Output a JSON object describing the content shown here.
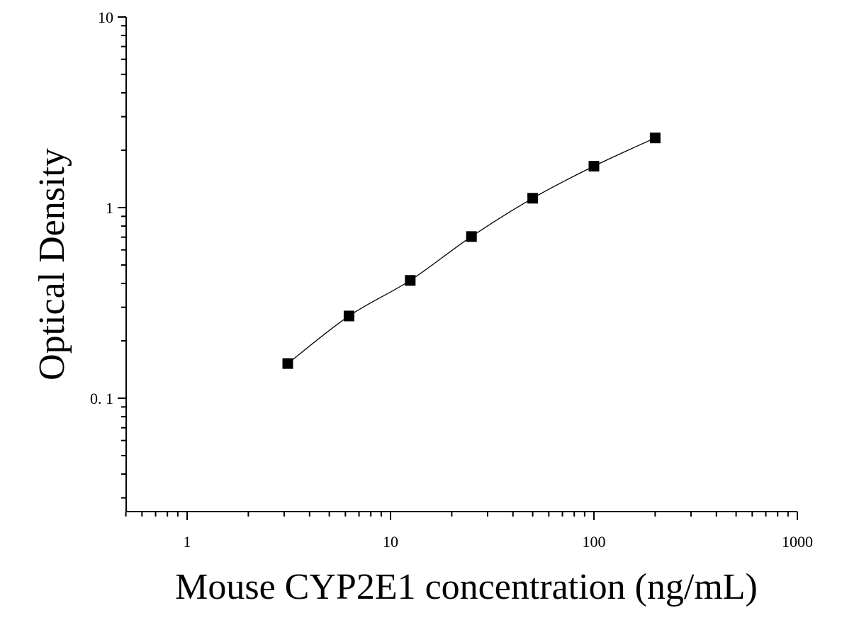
{
  "chart_data": {
    "type": "scatter",
    "xlabel": "Mouse CYP2E1 concentration (ng/mL)",
    "ylabel": "Optical Density",
    "x_scale": "log",
    "y_scale": "log",
    "xlim": [
      0.5,
      1000
    ],
    "ylim": [
      0.025,
      10
    ],
    "x_ticks": [
      {
        "value": 1,
        "label": "1"
      },
      {
        "value": 10,
        "label": "10"
      },
      {
        "value": 100,
        "label": "100"
      },
      {
        "value": 1000,
        "label": "1000"
      }
    ],
    "y_ticks": [
      {
        "value": 0.1,
        "label": "0. 1"
      },
      {
        "value": 1,
        "label": "1"
      },
      {
        "value": 10,
        "label": "10"
      }
    ],
    "grid": false,
    "legend": "none",
    "series": [
      {
        "marker": "square",
        "fit_line": true,
        "color": "#000000",
        "points": [
          {
            "x": 3.125,
            "y": 0.152
          },
          {
            "x": 6.25,
            "y": 0.27
          },
          {
            "x": 12.5,
            "y": 0.415
          },
          {
            "x": 25,
            "y": 0.705
          },
          {
            "x": 50,
            "y": 1.12
          },
          {
            "x": 100,
            "y": 1.65
          },
          {
            "x": 200,
            "y": 2.32
          }
        ]
      }
    ]
  }
}
